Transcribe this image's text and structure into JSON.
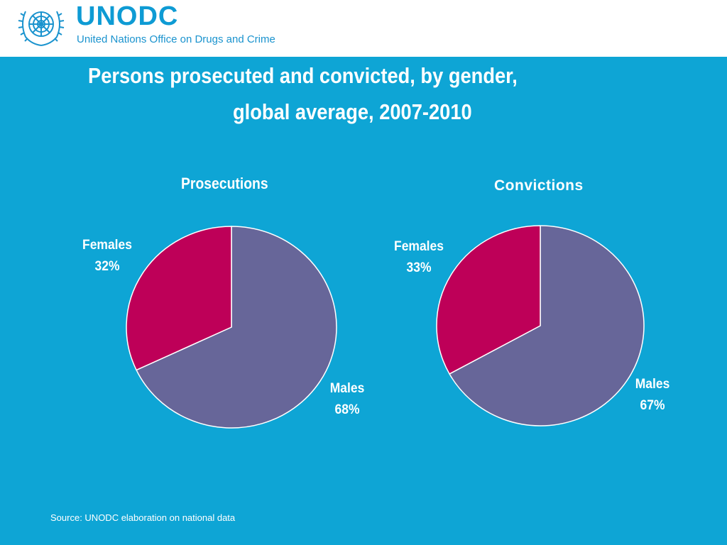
{
  "header": {
    "logo_name": "UNODC",
    "logo_tagline": "United Nations Office on Drugs and Crime",
    "logo_emblem_icon": "un-emblem-icon"
  },
  "slide": {
    "title_line1": "Persons prosecuted and convicted, by gender,",
    "title_line2": "global average, 2007-2010",
    "source": "Source: UNODC elaboration on national data"
  },
  "colors": {
    "background": "#0EA5D5",
    "males": "#676699",
    "females": "#BE0058",
    "stroke": "#ffffff"
  },
  "chart_data": [
    {
      "type": "pie",
      "title": "Prosecutions",
      "slices": [
        {
          "label": "Males",
          "value": 68,
          "value_label": "68%"
        },
        {
          "label": "Females",
          "value": 32,
          "value_label": "32%"
        }
      ]
    },
    {
      "type": "pie",
      "title": "Convictions",
      "slices": [
        {
          "label": "Males",
          "value": 67,
          "value_label": "67%"
        },
        {
          "label": "Females",
          "value": 33,
          "value_label": "33%"
        }
      ]
    }
  ]
}
